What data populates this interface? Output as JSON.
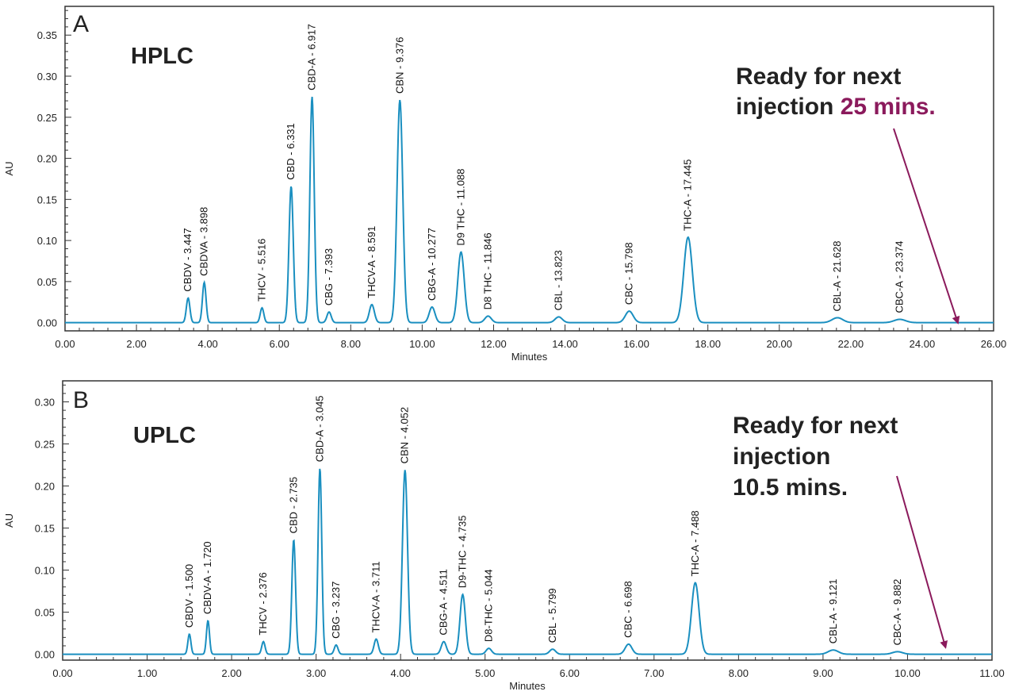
{
  "colors": {
    "trace": "#1a8fc0",
    "highlight": "#8b1a5c",
    "arrow": "#8b1a5c",
    "frame": "#333333"
  },
  "chart_data": [
    {
      "type": "line",
      "panel": "A",
      "method": "HPLC",
      "xlabel": "Minutes",
      "ylabel": "AU",
      "xlim": [
        0,
        26
      ],
      "ylim": [
        -0.01,
        0.385
      ],
      "xticks": [
        "0.00",
        "2.00",
        "4.00",
        "6.00",
        "8.00",
        "10.00",
        "12.00",
        "14.00",
        "16.00",
        "18.00",
        "20.00",
        "22.00",
        "24.00",
        "26.00"
      ],
      "yticks": [
        "0.00",
        "0.05",
        "0.10",
        "0.15",
        "0.20",
        "0.25",
        "0.30",
        "0.35"
      ],
      "note": {
        "line1": "Ready for next",
        "line2": "injection",
        "highlight": "25 mins.",
        "arrow_to_x": 25.0
      },
      "peaks": [
        {
          "label": "CBDV - 3.447",
          "rt": 3.447,
          "height": 0.03,
          "width": 0.05
        },
        {
          "label": "CBDVA - 3.898",
          "rt": 3.898,
          "height": 0.049,
          "width": 0.05
        },
        {
          "label": "THCV - 5.516",
          "rt": 5.516,
          "height": 0.018,
          "width": 0.05
        },
        {
          "label": "CBD - 6.331",
          "rt": 6.331,
          "height": 0.166,
          "width": 0.06
        },
        {
          "label": "CBD-A - 6.917",
          "rt": 6.917,
          "height": 0.275,
          "width": 0.06
        },
        {
          "label": "CBG - 7.393",
          "rt": 7.393,
          "height": 0.013,
          "width": 0.06
        },
        {
          "label": "THCV-A - 8.591",
          "rt": 8.591,
          "height": 0.022,
          "width": 0.07
        },
        {
          "label": "CBN - 9.376",
          "rt": 9.376,
          "height": 0.271,
          "width": 0.08
        },
        {
          "label": "CBG-A - 10.277",
          "rt": 10.277,
          "height": 0.019,
          "width": 0.08
        },
        {
          "label": "D9 THC - 11.088",
          "rt": 11.088,
          "height": 0.086,
          "width": 0.09
        },
        {
          "label": "D8 THC - 11.846",
          "rt": 11.846,
          "height": 0.008,
          "width": 0.09
        },
        {
          "label": "CBL - 13.823",
          "rt": 13.823,
          "height": 0.007,
          "width": 0.1
        },
        {
          "label": "CBC - 15.798",
          "rt": 15.798,
          "height": 0.014,
          "width": 0.11
        },
        {
          "label": "THC-A - 17.445",
          "rt": 17.445,
          "height": 0.104,
          "width": 0.12
        },
        {
          "label": "CBL-A - 21.628",
          "rt": 21.628,
          "height": 0.006,
          "width": 0.15
        },
        {
          "label": "CBC-A - 23.374",
          "rt": 23.374,
          "height": 0.004,
          "width": 0.16
        }
      ]
    },
    {
      "type": "line",
      "panel": "B",
      "method": "UPLC",
      "xlabel": "Minutes",
      "ylabel": "AU",
      "xlim": [
        0,
        11
      ],
      "ylim": [
        -0.007,
        0.325
      ],
      "xticks": [
        "0.00",
        "1.00",
        "2.00",
        "3.00",
        "4.00",
        "5.00",
        "6.00",
        "7.00",
        "8.00",
        "9.00",
        "10.00",
        "11.00"
      ],
      "yticks": [
        "0.00",
        "0.05",
        "0.10",
        "0.15",
        "0.20",
        "0.25",
        "0.30"
      ],
      "note": {
        "line1": "Ready for next",
        "line2": "injection",
        "highlight": "10.5 mins.",
        "arrow_to_x": 10.45
      },
      "peaks": [
        {
          "label": "CBDV - 1.500",
          "rt": 1.5,
          "height": 0.024,
          "width": 0.018
        },
        {
          "label": "CBDV-A - 1.720",
          "rt": 1.72,
          "height": 0.04,
          "width": 0.018
        },
        {
          "label": "THCV - 2.376",
          "rt": 2.376,
          "height": 0.015,
          "width": 0.02
        },
        {
          "label": "CBD - 2.735",
          "rt": 2.735,
          "height": 0.136,
          "width": 0.022
        },
        {
          "label": "CBD-A - 3.045",
          "rt": 3.045,
          "height": 0.221,
          "width": 0.022
        },
        {
          "label": "CBG - 3.237",
          "rt": 3.237,
          "height": 0.011,
          "width": 0.022
        },
        {
          "label": "THCV-A - 3.711",
          "rt": 3.711,
          "height": 0.018,
          "width": 0.025
        },
        {
          "label": "CBN - 4.052",
          "rt": 4.052,
          "height": 0.219,
          "width": 0.03
        },
        {
          "label": "CBG-A - 4.511",
          "rt": 4.511,
          "height": 0.015,
          "width": 0.03
        },
        {
          "label": "D9-THC - 4.735",
          "rt": 4.735,
          "height": 0.071,
          "width": 0.032
        },
        {
          "label": "D8-THC - 5.044",
          "rt": 5.044,
          "height": 0.007,
          "width": 0.032
        },
        {
          "label": "CBL - 5.799",
          "rt": 5.799,
          "height": 0.006,
          "width": 0.035
        },
        {
          "label": "CBC - 6.698",
          "rt": 6.698,
          "height": 0.012,
          "width": 0.04
        },
        {
          "label": "THC-A - 7.488",
          "rt": 7.488,
          "height": 0.085,
          "width": 0.045
        },
        {
          "label": "CBL-A - 9.121",
          "rt": 9.121,
          "height": 0.005,
          "width": 0.06
        },
        {
          "label": "CBC-A - 9.882",
          "rt": 9.882,
          "height": 0.003,
          "width": 0.06
        }
      ]
    }
  ]
}
